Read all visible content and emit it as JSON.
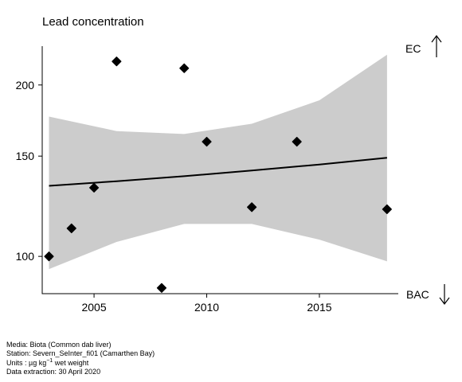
{
  "chart_data": {
    "type": "scatter",
    "title": "Lead concentration",
    "xlabel": "",
    "ylabel": "",
    "y_scale": "log",
    "xlim": [
      2002.7,
      2018.5
    ],
    "ylim": [
      86,
      234
    ],
    "x_ticks": [
      2005,
      2010,
      2015
    ],
    "y_ticks": [
      100,
      150,
      200
    ],
    "points": [
      {
        "x": 2003,
        "y": 100
      },
      {
        "x": 2004,
        "y": 112
      },
      {
        "x": 2005,
        "y": 132
      },
      {
        "x": 2006,
        "y": 220
      },
      {
        "x": 2008,
        "y": 88
      },
      {
        "x": 2009,
        "y": 214
      },
      {
        "x": 2010,
        "y": 159
      },
      {
        "x": 2012,
        "y": 122
      },
      {
        "x": 2014,
        "y": 159
      },
      {
        "x": 2018,
        "y": 121
      }
    ],
    "trend": {
      "x": [
        2003,
        2006,
        2009,
        2012,
        2015,
        2018
      ],
      "fit": [
        133,
        135.5,
        138.3,
        141.5,
        145,
        149
      ],
      "lower": [
        95,
        106,
        114,
        114,
        107,
        98
      ],
      "upper": [
        176,
        166,
        164,
        171,
        188,
        226
      ]
    },
    "reference_lines": {
      "upper": {
        "label": "EC",
        "arrow": "up"
      },
      "lower": {
        "label": "BAC",
        "arrow": "down"
      }
    },
    "colors": {
      "band": "#cccccc",
      "line": "#000000",
      "points": "#000000"
    }
  },
  "footer": {
    "media": "Media: Biota (Common dab liver)",
    "station": "Station: Severn_SeInter_fi01 (Camarthen Bay)",
    "units_prefix": "Units : µg kg",
    "units_exp": "−1",
    "units_suffix": " wet weight",
    "extraction": "Data extraction: 30 April 2020"
  }
}
